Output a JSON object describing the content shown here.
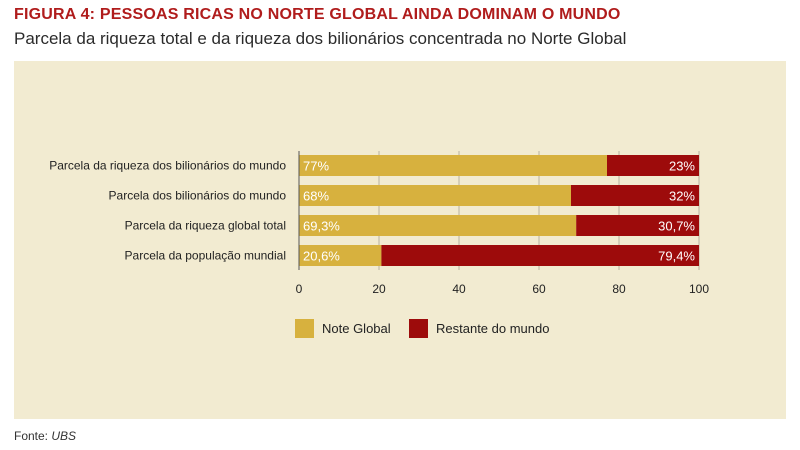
{
  "figure": {
    "label": "FIGURA 4: PESSOAS RICAS NO NORTE GLOBAL AINDA DOMINAM O MUNDO",
    "subtitle": "Parcela da riqueza total e da riqueza dos bilionários concentrada no Norte Global",
    "source_prefix": "Fonte: ",
    "source": "UBS"
  },
  "colors": {
    "north": "#d7b13e",
    "rest": "#9d0b0b",
    "axis": "#555555",
    "grid": "#b8b2a0",
    "label_text": "#222222",
    "bar_text": "#ffffff"
  },
  "chart_data": {
    "type": "bar",
    "orientation": "horizontal",
    "stacked": true,
    "categories": [
      "Parcela da riqueza dos bilionários do mundo",
      "Parcela dos bilionários do mundo",
      "Parcela da riqueza global total",
      "Parcela da população mundial"
    ],
    "series": [
      {
        "name": "Note Global",
        "values": [
          77,
          68,
          69.3,
          20.6
        ],
        "labels": [
          "77%",
          "68%",
          "69,3%",
          "20,6%"
        ]
      },
      {
        "name": "Restante do mundo",
        "values": [
          23,
          32,
          30.7,
          79.4
        ],
        "labels": [
          "23%",
          "32%",
          "30,7%",
          "79,4%"
        ]
      }
    ],
    "xlim": [
      0,
      100
    ],
    "xticks": [
      "0",
      "20",
      "40",
      "60",
      "80",
      "100"
    ],
    "xtick_values": [
      0,
      20,
      40,
      60,
      80,
      100
    ],
    "grid": true,
    "legend": "bottom"
  }
}
